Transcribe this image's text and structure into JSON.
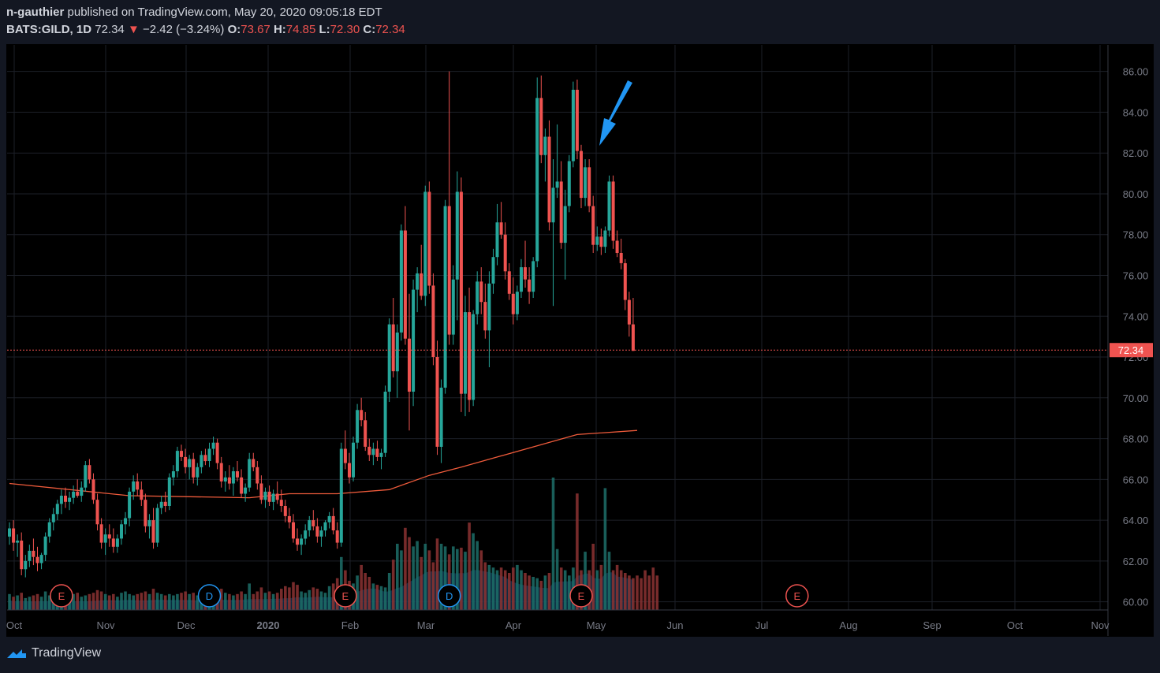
{
  "header": {
    "author": "n-gauthier",
    "published_text": "published on TradingView.com, May 20, 2020 09:05:18 EDT",
    "symbol": "BATS:GILD, 1D",
    "last": "72.34",
    "change_arrow": "▼",
    "change": "−2.42 (−3.24%)",
    "open_label": "O:",
    "open": "73.67",
    "high_label": "H:",
    "high": "74.85",
    "low_label": "L:",
    "low": "72.30",
    "close_label": "C:",
    "close": "72.34"
  },
  "footer": {
    "brand": "TradingView"
  },
  "colors": {
    "up": "#26a69a",
    "down": "#ef5350",
    "ma": "#ef5b3b",
    "arrow": "#2196f3",
    "background": "#000000",
    "axis_text": "#787b86"
  },
  "chart_data": {
    "type": "candlestick",
    "y_ticks": [
      "86.00",
      "84.00",
      "82.00",
      "80.00",
      "78.00",
      "76.00",
      "74.00",
      "72.00",
      "70.00",
      "68.00",
      "66.00",
      "64.00",
      "62.00",
      "60.00"
    ],
    "ylim": [
      59.6,
      87.3
    ],
    "x_ticks": [
      "Oct",
      "Nov",
      "Dec",
      "2020",
      "Feb",
      "Mar",
      "Apr",
      "May",
      "Jun",
      "Jul",
      "Aug",
      "Sep",
      "Oct",
      "Nov"
    ],
    "price_label": "72.34",
    "candles": [
      [
        63.2,
        63.9,
        62.8,
        63.6
      ],
      [
        63.6,
        64.0,
        62.5,
        62.9
      ],
      [
        62.9,
        63.3,
        62.2,
        63.0
      ],
      [
        63.0,
        63.4,
        61.3,
        61.6
      ],
      [
        61.6,
        62.3,
        61.2,
        62.0
      ],
      [
        62.0,
        62.8,
        61.7,
        62.5
      ],
      [
        62.5,
        63.1,
        61.8,
        62.2
      ],
      [
        62.2,
        62.7,
        61.5,
        61.9
      ],
      [
        61.9,
        62.4,
        61.6,
        62.3
      ],
      [
        62.3,
        63.4,
        62.0,
        63.2
      ],
      [
        63.2,
        64.1,
        62.9,
        63.9
      ],
      [
        63.9,
        64.6,
        63.5,
        64.3
      ],
      [
        64.3,
        65.0,
        64.0,
        64.8
      ],
      [
        64.8,
        65.5,
        64.3,
        65.2
      ],
      [
        65.2,
        65.6,
        64.6,
        64.9
      ],
      [
        64.9,
        65.4,
        64.5,
        65.1
      ],
      [
        65.1,
        65.7,
        64.8,
        65.4
      ],
      [
        65.4,
        66.0,
        65.1,
        65.2
      ],
      [
        65.2,
        65.9,
        64.9,
        65.6
      ],
      [
        65.6,
        66.9,
        65.4,
        66.7
      ],
      [
        66.7,
        67.0,
        65.8,
        66.0
      ],
      [
        66.0,
        66.3,
        64.8,
        65.0
      ],
      [
        65.0,
        65.3,
        63.5,
        63.8
      ],
      [
        63.8,
        64.1,
        62.6,
        62.9
      ],
      [
        62.9,
        63.6,
        62.3,
        63.3
      ],
      [
        63.3,
        63.8,
        62.7,
        63.1
      ],
      [
        63.1,
        63.6,
        62.4,
        62.7
      ],
      [
        62.7,
        63.3,
        62.4,
        63.1
      ],
      [
        63.1,
        64.0,
        62.8,
        63.8
      ],
      [
        63.8,
        64.4,
        63.3,
        64.1
      ],
      [
        64.1,
        65.6,
        63.7,
        65.4
      ],
      [
        65.4,
        66.2,
        65.0,
        65.9
      ],
      [
        65.9,
        66.3,
        65.2,
        65.5
      ],
      [
        65.5,
        65.9,
        64.7,
        65.0
      ],
      [
        65.0,
        65.3,
        63.4,
        63.7
      ],
      [
        63.7,
        64.3,
        63.1,
        64.0
      ],
      [
        64.0,
        64.6,
        62.6,
        62.9
      ],
      [
        62.9,
        64.8,
        62.7,
        64.6
      ],
      [
        64.6,
        65.2,
        64.3,
        64.9
      ],
      [
        64.9,
        65.4,
        64.4,
        64.7
      ],
      [
        64.7,
        66.3,
        64.5,
        66.1
      ],
      [
        66.1,
        66.7,
        65.7,
        66.4
      ],
      [
        66.4,
        67.6,
        66.1,
        67.4
      ],
      [
        67.4,
        67.7,
        66.9,
        67.1
      ],
      [
        67.1,
        67.5,
        66.3,
        66.6
      ],
      [
        66.6,
        67.2,
        66.0,
        67.0
      ],
      [
        67.0,
        67.3,
        65.8,
        66.1
      ],
      [
        66.1,
        66.8,
        65.7,
        66.6
      ],
      [
        66.6,
        67.4,
        66.3,
        67.2
      ],
      [
        67.2,
        67.5,
        66.7,
        66.9
      ],
      [
        66.9,
        67.8,
        66.6,
        67.5
      ],
      [
        67.5,
        68.1,
        67.2,
        67.8
      ],
      [
        67.8,
        68.0,
        66.5,
        66.8
      ],
      [
        66.8,
        67.1,
        65.6,
        65.9
      ],
      [
        65.9,
        66.4,
        65.4,
        66.1
      ],
      [
        66.1,
        66.7,
        65.5,
        65.8
      ],
      [
        65.8,
        66.6,
        65.2,
        66.4
      ],
      [
        66.4,
        66.9,
        65.9,
        66.1
      ],
      [
        66.1,
        66.5,
        65.1,
        65.3
      ],
      [
        65.3,
        65.8,
        64.9,
        65.6
      ],
      [
        65.6,
        67.3,
        65.4,
        67.0
      ],
      [
        67.0,
        67.3,
        66.4,
        66.6
      ],
      [
        66.6,
        66.9,
        65.5,
        65.8
      ],
      [
        65.8,
        66.2,
        64.8,
        65.0
      ],
      [
        65.0,
        65.6,
        64.6,
        65.4
      ],
      [
        65.4,
        65.7,
        64.7,
        64.9
      ],
      [
        64.9,
        65.5,
        64.5,
        65.3
      ],
      [
        65.3,
        65.9,
        64.8,
        65.0
      ],
      [
        65.0,
        65.5,
        64.4,
        64.7
      ],
      [
        64.7,
        65.0,
        63.9,
        64.2
      ],
      [
        64.2,
        64.6,
        63.6,
        63.9
      ],
      [
        63.9,
        64.3,
        62.9,
        63.1
      ],
      [
        63.1,
        63.6,
        62.5,
        62.8
      ],
      [
        62.8,
        63.3,
        62.3,
        63.1
      ],
      [
        63.1,
        63.8,
        62.8,
        63.5
      ],
      [
        63.5,
        64.2,
        63.2,
        64.0
      ],
      [
        64.0,
        64.5,
        63.5,
        63.7
      ],
      [
        63.7,
        64.1,
        62.9,
        63.2
      ],
      [
        63.2,
        63.7,
        62.7,
        63.5
      ],
      [
        63.5,
        64.0,
        63.2,
        63.9
      ],
      [
        63.9,
        64.4,
        63.6,
        64.2
      ],
      [
        64.2,
        64.6,
        63.3,
        63.5
      ],
      [
        63.5,
        63.9,
        62.6,
        62.9
      ],
      [
        62.9,
        67.8,
        62.7,
        67.5
      ],
      [
        67.5,
        68.4,
        66.5,
        66.8
      ],
      [
        66.8,
        67.3,
        65.8,
        66.1
      ],
      [
        66.1,
        68.1,
        65.9,
        67.8
      ],
      [
        67.8,
        69.7,
        67.5,
        69.4
      ],
      [
        69.4,
        70.0,
        68.6,
        68.9
      ],
      [
        68.9,
        69.3,
        67.4,
        67.6
      ],
      [
        67.6,
        68.0,
        66.9,
        67.2
      ],
      [
        67.2,
        67.8,
        66.7,
        67.5
      ],
      [
        67.5,
        67.9,
        66.9,
        67.1
      ],
      [
        67.1,
        67.5,
        66.5,
        67.3
      ],
      [
        67.3,
        70.6,
        67.1,
        70.3
      ],
      [
        70.3,
        73.9,
        69.8,
        73.6
      ],
      [
        73.6,
        74.9,
        71.0,
        71.3
      ],
      [
        71.3,
        73.6,
        70.0,
        73.2
      ],
      [
        73.2,
        78.5,
        72.8,
        78.2
      ],
      [
        78.2,
        79.4,
        72.6,
        72.9
      ],
      [
        72.9,
        75.1,
        68.4,
        70.3
      ],
      [
        70.3,
        75.8,
        69.6,
        75.3
      ],
      [
        75.3,
        76.4,
        74.2,
        76.1
      ],
      [
        76.1,
        77.5,
        74.8,
        75.0
      ],
      [
        75.0,
        80.4,
        74.5,
        80.1
      ],
      [
        80.1,
        80.6,
        75.1,
        75.5
      ],
      [
        75.5,
        76.1,
        71.6,
        72.0
      ],
      [
        72.0,
        72.8,
        67.2,
        67.6
      ],
      [
        67.6,
        70.9,
        66.8,
        70.5
      ],
      [
        70.5,
        79.7,
        70.2,
        79.4
      ],
      [
        79.4,
        86.0,
        72.6,
        73.1
      ],
      [
        73.1,
        76.5,
        72.6,
        75.8
      ],
      [
        75.8,
        81.1,
        73.8,
        80.1
      ],
      [
        80.1,
        80.8,
        69.3,
        70.2
      ],
      [
        70.2,
        75.0,
        69.1,
        74.2
      ],
      [
        74.2,
        75.4,
        69.3,
        69.9
      ],
      [
        69.9,
        74.3,
        69.6,
        74.1
      ],
      [
        74.1,
        76.2,
        73.6,
        75.7
      ],
      [
        75.7,
        76.4,
        74.1,
        74.7
      ],
      [
        74.7,
        75.6,
        72.9,
        73.3
      ],
      [
        73.3,
        76.2,
        71.5,
        75.6
      ],
      [
        75.6,
        77.3,
        75.1,
        76.9
      ],
      [
        76.9,
        79.5,
        76.5,
        78.6
      ],
      [
        78.6,
        79.6,
        77.8,
        78.0
      ],
      [
        78.0,
        78.6,
        75.8,
        76.2
      ],
      [
        76.2,
        76.6,
        74.8,
        75.1
      ],
      [
        75.1,
        75.9,
        73.6,
        74.1
      ],
      [
        74.1,
        75.5,
        73.8,
        75.2
      ],
      [
        75.2,
        76.8,
        74.9,
        76.4
      ],
      [
        76.4,
        77.7,
        75.4,
        75.8
      ],
      [
        75.8,
        76.4,
        74.6,
        75.2
      ],
      [
        75.2,
        76.9,
        74.9,
        76.7
      ],
      [
        76.7,
        85.7,
        76.4,
        84.7
      ],
      [
        84.7,
        85.8,
        81.5,
        81.9
      ],
      [
        81.9,
        83.2,
        80.6,
        82.8
      ],
      [
        82.8,
        83.6,
        78.2,
        78.6
      ],
      [
        78.6,
        81.7,
        74.5,
        80.3
      ],
      [
        80.3,
        83.4,
        79.8,
        80.6
      ],
      [
        80.6,
        81.6,
        77.3,
        77.6
      ],
      [
        77.6,
        80.2,
        75.8,
        79.4
      ],
      [
        79.4,
        81.9,
        79.1,
        81.6
      ],
      [
        81.6,
        85.5,
        81.3,
        85.1
      ],
      [
        85.1,
        85.6,
        81.7,
        82.1
      ],
      [
        82.1,
        82.4,
        79.3,
        79.8
      ],
      [
        79.8,
        81.7,
        79.4,
        81.3
      ],
      [
        81.3,
        81.7,
        79.1,
        79.4
      ],
      [
        79.4,
        79.9,
        77.1,
        77.5
      ],
      [
        77.5,
        78.4,
        77.2,
        77.9
      ],
      [
        77.9,
        78.3,
        77.0,
        77.4
      ],
      [
        77.4,
        78.4,
        77.1,
        78.2
      ],
      [
        78.2,
        80.9,
        77.9,
        80.6
      ],
      [
        80.6,
        80.9,
        77.3,
        77.7
      ],
      [
        77.7,
        78.2,
        76.9,
        77.1
      ],
      [
        77.1,
        77.8,
        76.3,
        76.6
      ],
      [
        76.6,
        76.8,
        74.3,
        74.8
      ],
      [
        74.8,
        75.2,
        73.0,
        73.6
      ],
      [
        73.6,
        74.9,
        72.3,
        72.3
      ]
    ],
    "ma": [
      [
        0,
        65.8
      ],
      [
        30,
        65.2
      ],
      [
        60,
        65.1
      ],
      [
        70,
        65.3
      ],
      [
        82,
        65.3
      ],
      [
        95,
        65.5
      ],
      [
        105,
        66.2
      ],
      [
        113,
        66.6
      ],
      [
        122,
        67.1
      ],
      [
        133,
        67.7
      ],
      [
        142,
        68.2
      ],
      [
        157,
        68.4
      ]
    ],
    "volume": [
      0.12,
      0.1,
      0.11,
      0.13,
      0.09,
      0.1,
      0.11,
      0.12,
      0.1,
      0.14,
      0.11,
      0.1,
      0.12,
      0.09,
      0.11,
      0.1,
      0.12,
      0.13,
      0.1,
      0.11,
      0.12,
      0.13,
      0.15,
      0.14,
      0.12,
      0.11,
      0.12,
      0.1,
      0.13,
      0.14,
      0.12,
      0.11,
      0.12,
      0.13,
      0.14,
      0.12,
      0.16,
      0.13,
      0.12,
      0.11,
      0.12,
      0.11,
      0.12,
      0.13,
      0.14,
      0.12,
      0.13,
      0.11,
      0.12,
      0.1,
      0.14,
      0.12,
      0.15,
      0.16,
      0.13,
      0.12,
      0.11,
      0.12,
      0.14,
      0.12,
      0.2,
      0.12,
      0.14,
      0.17,
      0.13,
      0.14,
      0.12,
      0.13,
      0.16,
      0.18,
      0.17,
      0.21,
      0.19,
      0.14,
      0.13,
      0.15,
      0.17,
      0.16,
      0.14,
      0.13,
      0.18,
      0.2,
      0.24,
      0.4,
      0.3,
      0.22,
      0.2,
      0.26,
      0.34,
      0.28,
      0.25,
      0.2,
      0.19,
      0.18,
      0.17,
      0.28,
      0.38,
      0.5,
      0.45,
      0.62,
      0.55,
      0.48,
      0.52,
      0.4,
      0.5,
      0.45,
      0.36,
      0.54,
      0.5,
      0.48,
      0.42,
      0.48,
      0.46,
      0.47,
      0.44,
      0.66,
      0.58,
      0.52,
      0.45,
      0.36,
      0.34,
      0.32,
      0.3,
      0.32,
      0.3,
      0.28,
      0.32,
      0.34,
      0.3,
      0.28,
      0.26,
      0.25,
      0.24,
      0.22,
      0.26,
      0.28,
      1.0,
      0.46,
      0.32,
      0.3,
      0.26,
      0.32,
      0.88,
      0.3,
      0.44,
      0.3,
      0.5,
      0.3,
      0.34,
      0.92,
      0.44,
      0.3,
      0.34,
      0.3,
      0.28,
      0.26,
      0.24,
      0.26,
      0.24,
      0.3,
      0.26,
      0.32,
      0.26
    ],
    "markers": [
      {
        "label": "E",
        "i": 13
      },
      {
        "label": "D",
        "i": 50
      },
      {
        "label": "E",
        "i": 84
      },
      {
        "label": "D",
        "i": 110
      },
      {
        "label": "E",
        "i": 143
      },
      {
        "label": "E",
        "i": 197
      }
    ]
  }
}
